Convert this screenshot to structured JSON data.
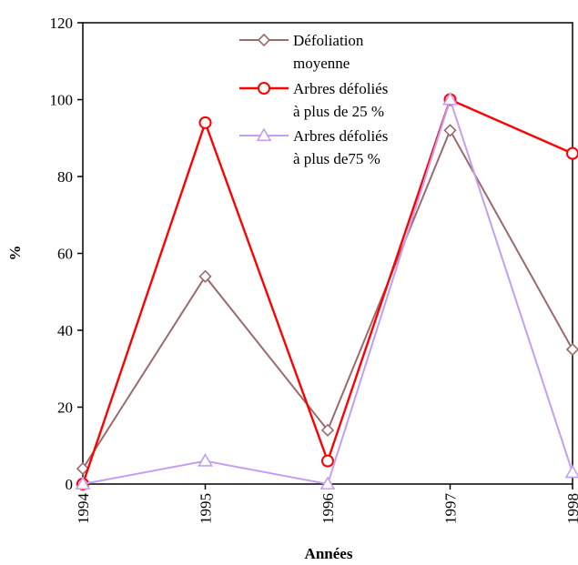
{
  "chart_data": {
    "type": "line",
    "title": "",
    "xlabel": "Années",
    "ylabel": "%",
    "categories": [
      "1994",
      "1995",
      "1996",
      "1997",
      "1998"
    ],
    "ylim": [
      0,
      120
    ],
    "yticks": [
      0,
      20,
      40,
      60,
      80,
      100,
      120
    ],
    "grid": false,
    "legend_position": "top-center",
    "series": [
      {
        "name": "Défoliation moyenne",
        "legend_lines": [
          "Défoliation",
          "moyenne"
        ],
        "color": "#9b6b6b",
        "marker": "diamond",
        "values": [
          4,
          54,
          14,
          92,
          35
        ]
      },
      {
        "name": "Arbres défoliés à plus de 25 %",
        "legend_lines": [
          "Arbres défoliés",
          "à plus de 25 %"
        ],
        "color": "#ff0000",
        "marker": "circle",
        "values": [
          0,
          94,
          6,
          100,
          86
        ]
      },
      {
        "name": "Arbres défoliés à plus de75 %",
        "legend_lines": [
          "Arbres défoliés",
          "à plus de75 %"
        ],
        "color": "#c49ef5",
        "marker": "triangle",
        "values": [
          0,
          6,
          0,
          100,
          3
        ]
      }
    ]
  }
}
